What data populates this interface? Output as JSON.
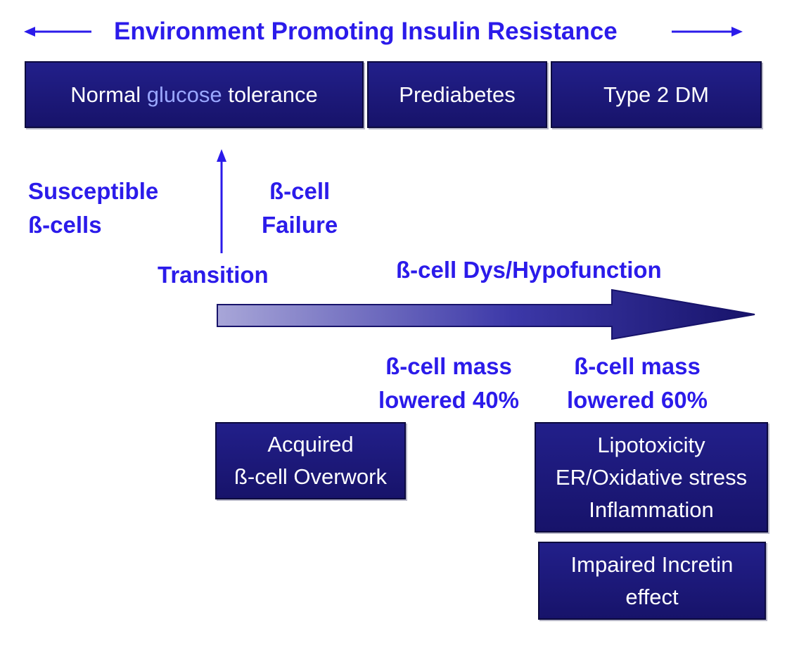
{
  "header": {
    "title": "Environment Promoting Insulin Resistance",
    "left_arrow_icon": "arrow-left-icon",
    "right_arrow_icon": "arrow-right-icon"
  },
  "stages": {
    "normal_prefix": "Normal ",
    "normal_highlight": "glucose",
    "normal_suffix": " tolerance",
    "prediabetes": "Prediabetes",
    "type2": "Type 2 DM"
  },
  "labels": {
    "susceptible_line1": "Susceptible",
    "susceptible_line2": "ß-cells",
    "failure_line1": "ß-cell",
    "failure_line2": "Failure",
    "transition": "Transition",
    "dysfunction": "ß-cell Dys/Hypofunction",
    "mass40_line1": "ß-cell mass",
    "mass40_line2": "lowered 40%",
    "mass60_line1": "ß-cell mass",
    "mass60_line2": "lowered 60%"
  },
  "boxes": {
    "overwork_line1": "Acquired",
    "overwork_line2": "ß-cell Overwork",
    "lipo_line1": "Lipotoxicity",
    "lipo_line2": "ER/Oxidative stress",
    "lipo_line3": "Inflammation",
    "incretin_line1": "Impaired Incretin",
    "incretin_line2": "effect"
  },
  "colors": {
    "accent_text": "#2b1bea",
    "box_fill": "#1d1a7a",
    "glucose_highlight": "#9aa7ff",
    "progress_arrow_start": "#a8a6d8",
    "progress_arrow_end": "#17136a"
  }
}
